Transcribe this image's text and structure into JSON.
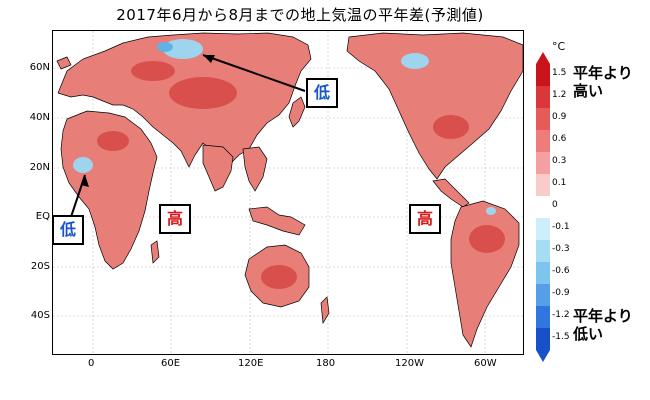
{
  "title": "2017年6月から8月までの地上気温の平年差(予測値)",
  "latitude_labels": [
    "60N",
    "40N",
    "20N",
    "EQ",
    "20S",
    "40S"
  ],
  "longitude_labels": [
    "0",
    "60E",
    "120E",
    "180",
    "120W",
    "60W"
  ],
  "annotations": {
    "low_siberia": "低",
    "low_west_africa": "低",
    "high_indian_ocean": "高",
    "high_pacific": "高"
  },
  "legend": {
    "unit": "°C",
    "ticks": [
      "1.5",
      "1.2",
      "0.9",
      "0.6",
      "0.3",
      "0.1",
      "0",
      "-0.1",
      "-0.3",
      "-0.6",
      "-0.9",
      "-1.2",
      "-1.5"
    ],
    "colors": [
      "#c8141a",
      "#d9373a",
      "#e75a5a",
      "#ef7c7c",
      "#f4a0a0",
      "#f9cbcb",
      "#ffffff",
      "#cdeefa",
      "#a6dcf4",
      "#7dc5ef",
      "#569fe8",
      "#3076de",
      "#1750c9"
    ],
    "high_caption": "平年より\n高い",
    "low_caption": "平年より\n低い"
  },
  "colors": {
    "warm_fill": "#e87e78",
    "hot_fill": "#d94f4b",
    "cool_fill": "#9fd4ef",
    "gridline": "#bdbdbd",
    "border": "#000000"
  }
}
